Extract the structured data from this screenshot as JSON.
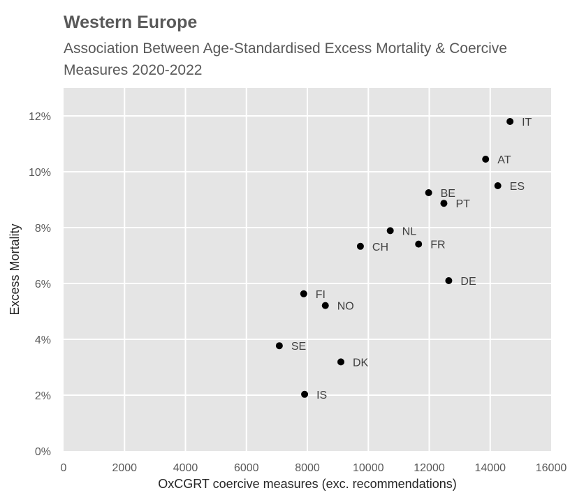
{
  "chart_data": {
    "type": "scatter",
    "title": "Western Europe",
    "subtitle": "Association Between Age-Standardised Excess Mortality & Coercive Measures 2020-2022",
    "xlabel": "OxCGRT coercive measures (exc. recommendations)",
    "ylabel": "Excess Mortality",
    "xlim": [
      0,
      16000
    ],
    "ylim": [
      0,
      0.13
    ],
    "xticks": [
      0,
      2000,
      4000,
      6000,
      8000,
      10000,
      12000,
      14000,
      16000
    ],
    "xtick_labels": [
      "0",
      "2000",
      "4000",
      "6000",
      "8000",
      "10000",
      "12000",
      "14000",
      "16000"
    ],
    "yticks": [
      0,
      0.02,
      0.04,
      0.06,
      0.08,
      0.1,
      0.12
    ],
    "ytick_labels": [
      "0%",
      "2%",
      "4%",
      "6%",
      "8%",
      "10%",
      "12%"
    ],
    "grid": true,
    "points": [
      {
        "label": "IT",
        "x": 14650,
        "y": 0.118
      },
      {
        "label": "AT",
        "x": 13850,
        "y": 0.1045
      },
      {
        "label": "ES",
        "x": 14250,
        "y": 0.095
      },
      {
        "label": "BE",
        "x": 11980,
        "y": 0.0925
      },
      {
        "label": "PT",
        "x": 12480,
        "y": 0.0887
      },
      {
        "label": "NL",
        "x": 10720,
        "y": 0.0789
      },
      {
        "label": "FR",
        "x": 11650,
        "y": 0.0741
      },
      {
        "label": "CH",
        "x": 9740,
        "y": 0.0733
      },
      {
        "label": "DE",
        "x": 12640,
        "y": 0.061
      },
      {
        "label": "FI",
        "x": 7880,
        "y": 0.0563
      },
      {
        "label": "NO",
        "x": 8590,
        "y": 0.0521
      },
      {
        "label": "SE",
        "x": 7080,
        "y": 0.0377
      },
      {
        "label": "DK",
        "x": 9100,
        "y": 0.0319
      },
      {
        "label": "IS",
        "x": 7910,
        "y": 0.0203
      }
    ]
  }
}
